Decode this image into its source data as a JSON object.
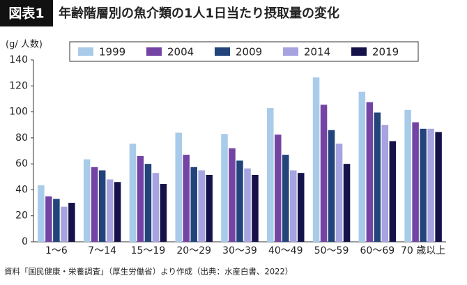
{
  "chart_data": {
    "type": "bar",
    "badge": "図表1",
    "title": "年齢階層別の魚介類の1人1日当たり摂取量の変化",
    "y_label": "(g/ 人数)",
    "source": "資料「国民健康・栄養調査」（厚生労働省）より作成（出典：水産白書、2022）",
    "categories": [
      "1〜6",
      "7〜14",
      "15〜19",
      "20〜29",
      "30〜39",
      "40〜49",
      "50〜59",
      "60〜69",
      "70 歳以上"
    ],
    "series": [
      {
        "name": "1999",
        "color": "#a9cbea",
        "values": [
          43.5,
          63.5,
          75.5,
          84,
          83,
          103,
          126.5,
          115.5,
          101.5
        ]
      },
      {
        "name": "2004",
        "color": "#7344a4",
        "values": [
          35,
          57.5,
          66,
          67,
          72,
          82.5,
          105.5,
          107.5,
          92
        ]
      },
      {
        "name": "2009",
        "color": "#22447a",
        "values": [
          33,
          55,
          60,
          57.5,
          62.5,
          67,
          86,
          99.5,
          87
        ]
      },
      {
        "name": "2014",
        "color": "#a6a3e0",
        "values": [
          27,
          48,
          53,
          55,
          56.5,
          55,
          75.5,
          90,
          87
        ]
      },
      {
        "name": "2019",
        "color": "#15124a",
        "values": [
          30,
          46,
          44.5,
          51.5,
          51.5,
          53,
          60,
          77.5,
          84.5
        ]
      }
    ],
    "ylim": [
      0,
      140
    ],
    "yticks": [
      0,
      20,
      40,
      60,
      80,
      100,
      120,
      140
    ],
    "grid": false
  }
}
